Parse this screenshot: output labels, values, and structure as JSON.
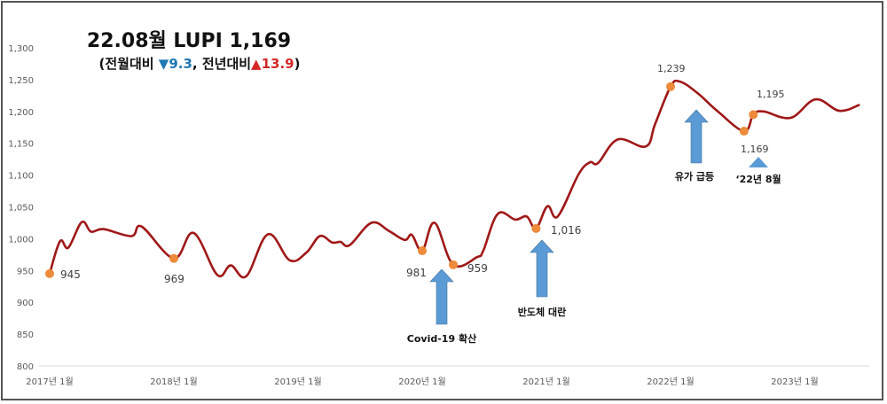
{
  "title": {
    "main": "22.08월 LUPI 1,169",
    "sub_prefix": "(전월대비 ",
    "mom_arrow": "▼",
    "mom_value": "9.3",
    "sub_mid": ", 전년대비",
    "yoy_arrow": "▲",
    "yoy_value": "13.9",
    "sub_suffix": ")",
    "mom_color": "#1f77b4",
    "yoy_color": "#d62728"
  },
  "colors": {
    "line": "#a01818",
    "marker": "#ed8b3a",
    "arrow": "#5b9bd5",
    "axis": "#d9d9d9"
  },
  "chart_data": {
    "type": "line",
    "title": "22.08월 LUPI 1,169",
    "subtitle": "(전월대비 ▼9.3, 전년대비▲13.9)",
    "xlabel": "",
    "ylabel": "",
    "ylim": [
      800,
      1300
    ],
    "yticks": [
      800,
      850,
      900,
      950,
      1000,
      1050,
      1100,
      1150,
      1200,
      1250,
      1300
    ],
    "ytick_labels": [
      "800",
      "850",
      "900",
      "950",
      "1,000",
      "1,050",
      "1,100",
      "1,150",
      "1,200",
      "1,250",
      "1,300"
    ],
    "xtick_labels": [
      "2017년 1월",
      "2018년 1월",
      "2019년 1월",
      "2020년 1월",
      "2021년 1월",
      "2022년 1월",
      "2023년 1월"
    ],
    "xtick_months": [
      0,
      12,
      24,
      36,
      48,
      60,
      72
    ],
    "grid": false,
    "legend": null,
    "series": [
      {
        "name": "LUPI",
        "points": [
          [
            0,
            945
          ],
          [
            1,
            996
          ],
          [
            1.8,
            986
          ],
          [
            3.1,
            1026
          ],
          [
            4,
            1011
          ],
          [
            5.2,
            1015
          ],
          [
            7.9,
            1004
          ],
          [
            8.9,
            1019
          ],
          [
            12,
            969
          ],
          [
            13.9,
            1009
          ],
          [
            16.2,
            943
          ],
          [
            17.5,
            958
          ],
          [
            19.0,
            941
          ],
          [
            21.1,
            1007
          ],
          [
            23.2,
            966
          ],
          [
            24.8,
            978
          ],
          [
            26.1,
            1004
          ],
          [
            27.3,
            994
          ],
          [
            28.1,
            995
          ],
          [
            29.0,
            990
          ],
          [
            31.1,
            1025
          ],
          [
            32.8,
            1012
          ],
          [
            34.3,
            998
          ],
          [
            35.0,
            1006
          ],
          [
            36,
            981
          ],
          [
            37.2,
            1025
          ],
          [
            39.0,
            959
          ],
          [
            41.3,
            971
          ],
          [
            41.9,
            981
          ],
          [
            43.3,
            1039
          ],
          [
            45.0,
            1030
          ],
          [
            46.1,
            1035
          ],
          [
            47.0,
            1016
          ],
          [
            48.1,
            1051
          ],
          [
            49.1,
            1035
          ],
          [
            51.1,
            1101
          ],
          [
            52.2,
            1120
          ],
          [
            53.0,
            1119
          ],
          [
            54.9,
            1156
          ],
          [
            57.6,
            1145
          ],
          [
            58.5,
            1180
          ],
          [
            60.0,
            1239
          ],
          [
            60.9,
            1247
          ],
          [
            62.6,
            1229
          ],
          [
            64.5,
            1201
          ],
          [
            67.1,
            1169
          ],
          [
            68.0,
            1195
          ],
          [
            69.0,
            1200
          ],
          [
            71.6,
            1190
          ],
          [
            74.0,
            1219
          ],
          [
            76.3,
            1201
          ],
          [
            78.2,
            1210
          ]
        ]
      }
    ],
    "highlighted_points": [
      {
        "month": 0,
        "value": 945,
        "label": "945"
      },
      {
        "month": 12,
        "value": 969,
        "label": "969"
      },
      {
        "month": 36,
        "value": 981,
        "label": "981"
      },
      {
        "month": 39,
        "value": 959,
        "label": "959"
      },
      {
        "month": 47,
        "value": 1016,
        "label": "1,016"
      },
      {
        "month": 60,
        "value": 1239,
        "label": "1,239"
      },
      {
        "month": 67.1,
        "value": 1169,
        "label": "1,169"
      },
      {
        "month": 68,
        "value": 1195,
        "label": "1,195"
      }
    ],
    "annotations": [
      {
        "text": "Covid-19 확산",
        "type": "arrow-up"
      },
      {
        "text": "반도체 대란",
        "type": "arrow-up"
      },
      {
        "text": "유가 급등",
        "type": "arrow-up"
      },
      {
        "text": "‘22년 8월",
        "type": "triangle-up"
      }
    ]
  }
}
